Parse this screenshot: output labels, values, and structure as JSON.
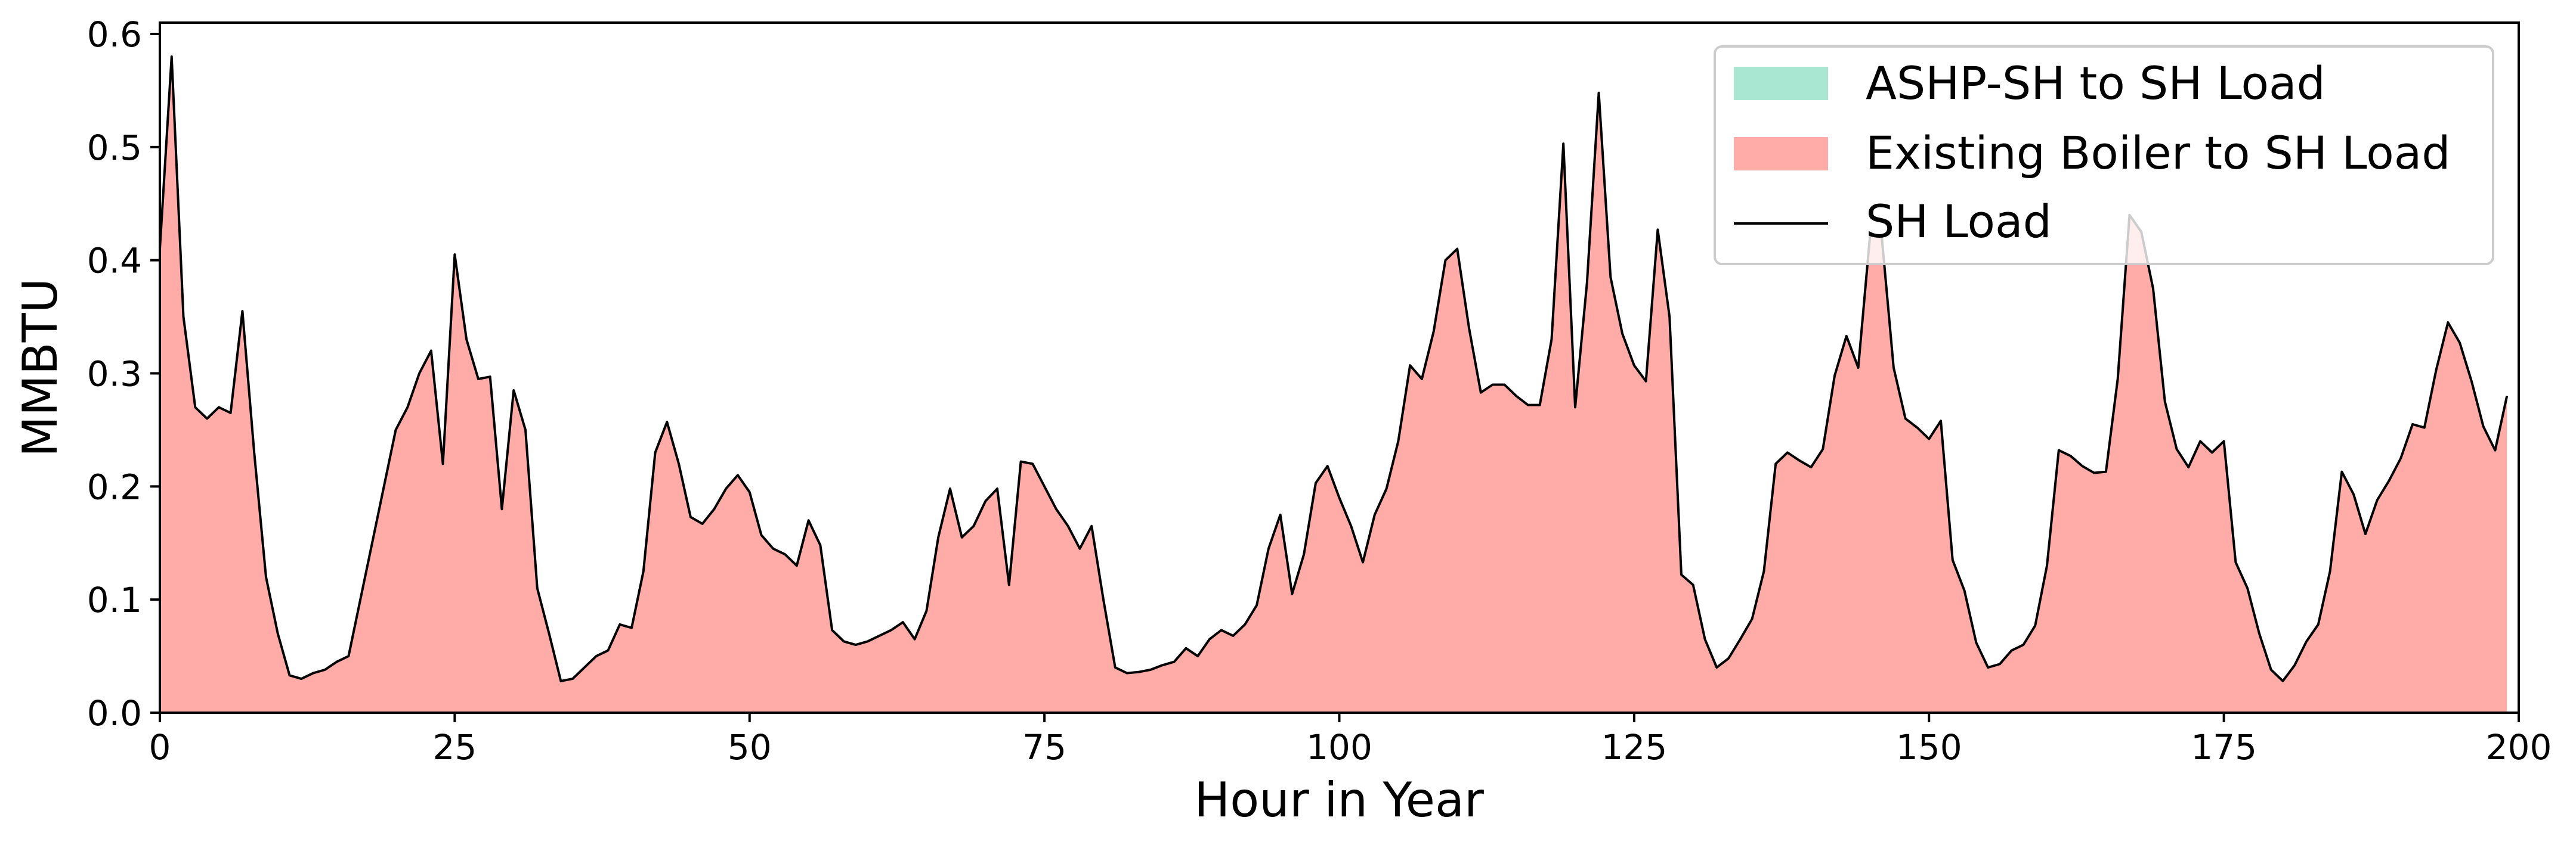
{
  "chart_data": {
    "type": "area",
    "title": "",
    "xlabel": "Hour in Year",
    "ylabel": "MMBTU",
    "xlim": [
      0,
      200
    ],
    "ylim": [
      0,
      0.61
    ],
    "xticks": [
      0,
      25,
      50,
      75,
      100,
      125,
      150,
      175,
      200
    ],
    "xtick_labels": [
      "0",
      "25",
      "50",
      "75",
      "100",
      "125",
      "150",
      "175",
      "200"
    ],
    "yticks": [
      0.0,
      0.1,
      0.2,
      0.3,
      0.4,
      0.5,
      0.6
    ],
    "ytick_labels": [
      "0.0",
      "0.1",
      "0.2",
      "0.3",
      "0.4",
      "0.5",
      "0.6"
    ],
    "grid": false,
    "legend_position": "top-right",
    "x": [
      0,
      1,
      2,
      3,
      4,
      5,
      6,
      7,
      8,
      9,
      10,
      11,
      12,
      13,
      14,
      15,
      16,
      17,
      18,
      19,
      20,
      21,
      22,
      23,
      24,
      25,
      26,
      27,
      28,
      29,
      30,
      31,
      32,
      33,
      34,
      35,
      36,
      37,
      38,
      39,
      40,
      41,
      42,
      43,
      44,
      45,
      46,
      47,
      48,
      49,
      50,
      51,
      52,
      53,
      54,
      55,
      56,
      57,
      58,
      59,
      60,
      61,
      62,
      63,
      64,
      65,
      66,
      67,
      68,
      69,
      70,
      71,
      72,
      73,
      74,
      75,
      76,
      77,
      78,
      79,
      80,
      81,
      82,
      83,
      84,
      85,
      86,
      87,
      88,
      89,
      90,
      91,
      92,
      93,
      94,
      95,
      96,
      97,
      98,
      99,
      100,
      101,
      102,
      103,
      104,
      105,
      106,
      107,
      108,
      109,
      110,
      111,
      112,
      113,
      114,
      115,
      116,
      117,
      118,
      119,
      120,
      121,
      122,
      123,
      124,
      125,
      126,
      127,
      128,
      129,
      130,
      131,
      132,
      133,
      134,
      135,
      136,
      137,
      138,
      139,
      140,
      141,
      142,
      143,
      144,
      145,
      146,
      147,
      148,
      149,
      150,
      151,
      152,
      153,
      154,
      155,
      156,
      157,
      158,
      159,
      160,
      161,
      162,
      163,
      164,
      165,
      166,
      167,
      168,
      169,
      170,
      171,
      172,
      173,
      174,
      175,
      176,
      177,
      178,
      179,
      180,
      181,
      182,
      183,
      184,
      185,
      186,
      187,
      188,
      189,
      190,
      191,
      192,
      193,
      194,
      195,
      196,
      197,
      198,
      199
    ],
    "series": [
      {
        "name": "ASHP-SH to SH Load",
        "style": "filled area",
        "color": "#aae7d3",
        "values": [
          0,
          0,
          0,
          0,
          0,
          0,
          0,
          0,
          0,
          0,
          0,
          0,
          0,
          0,
          0,
          0,
          0,
          0,
          0,
          0,
          0,
          0,
          0,
          0,
          0,
          0,
          0,
          0,
          0,
          0,
          0,
          0,
          0,
          0,
          0,
          0,
          0,
          0,
          0,
          0,
          0,
          0,
          0,
          0,
          0,
          0,
          0,
          0,
          0,
          0,
          0,
          0,
          0,
          0,
          0,
          0,
          0,
          0,
          0,
          0,
          0,
          0,
          0,
          0,
          0,
          0,
          0,
          0,
          0,
          0,
          0,
          0,
          0,
          0,
          0,
          0,
          0,
          0,
          0,
          0,
          0,
          0,
          0,
          0,
          0,
          0,
          0,
          0,
          0,
          0,
          0,
          0,
          0,
          0,
          0,
          0,
          0,
          0,
          0,
          0,
          0,
          0,
          0,
          0,
          0,
          0,
          0,
          0,
          0,
          0,
          0,
          0,
          0,
          0,
          0,
          0,
          0,
          0,
          0,
          0,
          0,
          0,
          0,
          0,
          0,
          0,
          0,
          0,
          0,
          0,
          0,
          0,
          0,
          0,
          0,
          0,
          0,
          0,
          0,
          0,
          0,
          0,
          0,
          0,
          0,
          0,
          0,
          0,
          0,
          0,
          0,
          0,
          0,
          0,
          0,
          0,
          0,
          0,
          0,
          0,
          0,
          0,
          0,
          0,
          0,
          0,
          0,
          0,
          0,
          0,
          0,
          0,
          0,
          0,
          0,
          0,
          0,
          0,
          0,
          0,
          0,
          0,
          0,
          0,
          0,
          0,
          0,
          0,
          0,
          0,
          0,
          0,
          0,
          0,
          0,
          0,
          0,
          0,
          0,
          0
        ]
      },
      {
        "name": "Existing Boiler to SH Load",
        "style": "filled area",
        "color": "#ffaba7",
        "values": [
          0.41,
          0.58,
          0.35,
          0.27,
          0.26,
          0.27,
          0.265,
          0.355,
          0.23,
          0.12,
          0.07,
          0.033,
          0.03,
          0.035,
          0.038,
          0.045,
          0.05,
          0.1,
          0.15,
          0.2,
          0.25,
          0.27,
          0.3,
          0.32,
          0.22,
          0.405,
          0.33,
          0.295,
          0.297,
          0.18,
          0.285,
          0.25,
          0.11,
          0.07,
          0.028,
          0.03,
          0.04,
          0.05,
          0.055,
          0.078,
          0.075,
          0.125,
          0.23,
          0.257,
          0.22,
          0.173,
          0.167,
          0.18,
          0.198,
          0.21,
          0.195,
          0.157,
          0.145,
          0.14,
          0.13,
          0.17,
          0.148,
          0.073,
          0.063,
          0.06,
          0.063,
          0.068,
          0.073,
          0.08,
          0.065,
          0.09,
          0.155,
          0.198,
          0.155,
          0.165,
          0.187,
          0.198,
          0.113,
          0.222,
          0.22,
          0.2,
          0.18,
          0.165,
          0.145,
          0.165,
          0.1,
          0.04,
          0.035,
          0.036,
          0.038,
          0.042,
          0.045,
          0.057,
          0.05,
          0.065,
          0.073,
          0.068,
          0.078,
          0.095,
          0.145,
          0.175,
          0.105,
          0.14,
          0.203,
          0.218,
          0.19,
          0.165,
          0.133,
          0.175,
          0.198,
          0.24,
          0.307,
          0.295,
          0.337,
          0.4,
          0.41,
          0.34,
          0.283,
          0.29,
          0.29,
          0.28,
          0.272,
          0.272,
          0.33,
          0.503,
          0.27,
          0.38,
          0.548,
          0.385,
          0.335,
          0.307,
          0.293,
          0.427,
          0.35,
          0.122,
          0.113,
          0.065,
          0.04,
          0.048,
          0.065,
          0.083,
          0.125,
          0.22,
          0.23,
          0.223,
          0.217,
          0.233,
          0.298,
          0.333,
          0.305,
          0.422,
          0.42,
          0.305,
          0.26,
          0.252,
          0.242,
          0.258,
          0.135,
          0.108,
          0.062,
          0.04,
          0.043,
          0.055,
          0.06,
          0.077,
          0.13,
          0.232,
          0.227,
          0.218,
          0.212,
          0.213,
          0.295,
          0.44,
          0.425,
          0.375,
          0.275,
          0.233,
          0.217,
          0.24,
          0.23,
          0.24,
          0.133,
          0.11,
          0.07,
          0.038,
          0.028,
          0.042,
          0.063,
          0.078,
          0.125,
          0.213,
          0.193,
          0.158,
          0.188,
          0.205,
          0.225,
          0.255,
          0.252,
          0.303,
          0.345,
          0.327,
          0.293,
          0.253,
          0.232,
          0.28
        ]
      },
      {
        "name": "SH Load",
        "style": "line",
        "color": "#000000",
        "values": [
          0.41,
          0.58,
          0.35,
          0.27,
          0.26,
          0.27,
          0.265,
          0.355,
          0.23,
          0.12,
          0.07,
          0.033,
          0.03,
          0.035,
          0.038,
          0.045,
          0.05,
          0.1,
          0.15,
          0.2,
          0.25,
          0.27,
          0.3,
          0.32,
          0.22,
          0.405,
          0.33,
          0.295,
          0.297,
          0.18,
          0.285,
          0.25,
          0.11,
          0.07,
          0.028,
          0.03,
          0.04,
          0.05,
          0.055,
          0.078,
          0.075,
          0.125,
          0.23,
          0.257,
          0.22,
          0.173,
          0.167,
          0.18,
          0.198,
          0.21,
          0.195,
          0.157,
          0.145,
          0.14,
          0.13,
          0.17,
          0.148,
          0.073,
          0.063,
          0.06,
          0.063,
          0.068,
          0.073,
          0.08,
          0.065,
          0.09,
          0.155,
          0.198,
          0.155,
          0.165,
          0.187,
          0.198,
          0.113,
          0.222,
          0.22,
          0.2,
          0.18,
          0.165,
          0.145,
          0.165,
          0.1,
          0.04,
          0.035,
          0.036,
          0.038,
          0.042,
          0.045,
          0.057,
          0.05,
          0.065,
          0.073,
          0.068,
          0.078,
          0.095,
          0.145,
          0.175,
          0.105,
          0.14,
          0.203,
          0.218,
          0.19,
          0.165,
          0.133,
          0.175,
          0.198,
          0.24,
          0.307,
          0.295,
          0.337,
          0.4,
          0.41,
          0.34,
          0.283,
          0.29,
          0.29,
          0.28,
          0.272,
          0.272,
          0.33,
          0.503,
          0.27,
          0.38,
          0.548,
          0.385,
          0.335,
          0.307,
          0.293,
          0.427,
          0.35,
          0.122,
          0.113,
          0.065,
          0.04,
          0.048,
          0.065,
          0.083,
          0.125,
          0.22,
          0.23,
          0.223,
          0.217,
          0.233,
          0.298,
          0.333,
          0.305,
          0.422,
          0.42,
          0.305,
          0.26,
          0.252,
          0.242,
          0.258,
          0.135,
          0.108,
          0.062,
          0.04,
          0.043,
          0.055,
          0.06,
          0.077,
          0.13,
          0.232,
          0.227,
          0.218,
          0.212,
          0.213,
          0.295,
          0.44,
          0.425,
          0.375,
          0.275,
          0.233,
          0.217,
          0.24,
          0.23,
          0.24,
          0.133,
          0.11,
          0.07,
          0.038,
          0.028,
          0.042,
          0.063,
          0.078,
          0.125,
          0.213,
          0.193,
          0.158,
          0.188,
          0.205,
          0.225,
          0.255,
          0.252,
          0.303,
          0.345,
          0.327,
          0.293,
          0.253,
          0.232,
          0.28
        ]
      }
    ]
  }
}
